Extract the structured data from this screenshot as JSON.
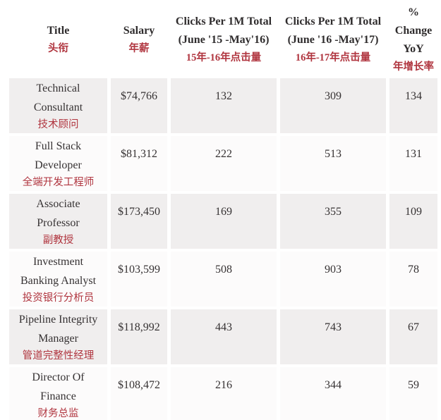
{
  "colors": {
    "accent_red": "#b0353f",
    "text_dark": "#363233",
    "row_shaded_bg": "#f0eeee",
    "row_plain_bg": "#fcfbfb",
    "page_bg": "#ffffff"
  },
  "table": {
    "headers": [
      {
        "en": "Title",
        "zh": "头衔"
      },
      {
        "en": "Salary",
        "zh": "年薪"
      },
      {
        "en": "Clicks Per 1M Total",
        "en2": "(June '15 -May'16)",
        "zh": "15年-16年点击量"
      },
      {
        "en": "Clicks Per 1M Total",
        "en2": "(June '16 -May'17)",
        "zh": "16年-17年点击量"
      },
      {
        "en": "%",
        "en2": "Change",
        "en3": "YoY",
        "zh": "年增长率"
      }
    ],
    "rows": [
      {
        "title1": "Technical",
        "title2": "Consultant",
        "zh": "技术顾问",
        "salary": "$74,766",
        "clicks_15_16": "132",
        "clicks_16_17": "309",
        "change": "134"
      },
      {
        "title1": "Full Stack",
        "title2": "Developer",
        "zh": "全端开发工程师",
        "salary": "$81,312",
        "clicks_15_16": "222",
        "clicks_16_17": "513",
        "change": "131"
      },
      {
        "title1": "Associate",
        "title2": "Professor",
        "zh": "副教授",
        "salary": "$173,450",
        "clicks_15_16": "169",
        "clicks_16_17": "355",
        "change": "109"
      },
      {
        "title1": "Investment",
        "title2": "Banking Analyst",
        "zh": "投资银行分析员",
        "salary": "$103,599",
        "clicks_15_16": "508",
        "clicks_16_17": "903",
        "change": "78"
      },
      {
        "title1": "Pipeline Integrity",
        "title2": "Manager",
        "zh": "管道完整性经理",
        "salary": "$118,992",
        "clicks_15_16": "443",
        "clicks_16_17": "743",
        "change": "67"
      },
      {
        "title1": "Director Of",
        "title2": "Finance",
        "zh": "财务总监",
        "salary": "$108,472",
        "clicks_15_16": "216",
        "clicks_16_17": "344",
        "change": "59"
      }
    ]
  },
  "chart_data": {
    "type": "table",
    "title": "",
    "columns": [
      "Title 头衔",
      "Salary 年薪",
      "Clicks Per 1M Total (June '15 -May'16) 15年-16年点击量",
      "Clicks Per 1M Total (June '16 -May'17) 16年-17年点击量",
      "% Change YoY 年增长率"
    ],
    "rows": [
      [
        "Technical Consultant 技术顾问",
        74766,
        132,
        309,
        134
      ],
      [
        "Full Stack Developer 全端开发工程师",
        81312,
        222,
        513,
        131
      ],
      [
        "Associate Professor 副教授",
        173450,
        169,
        355,
        109
      ],
      [
        "Investment Banking Analyst 投资银行分析员",
        103599,
        508,
        903,
        78
      ],
      [
        "Pipeline Integrity Manager 管道完整性经理",
        118992,
        443,
        743,
        67
      ],
      [
        "Director Of Finance 财务总监",
        108472,
        216,
        344,
        59
      ]
    ]
  }
}
